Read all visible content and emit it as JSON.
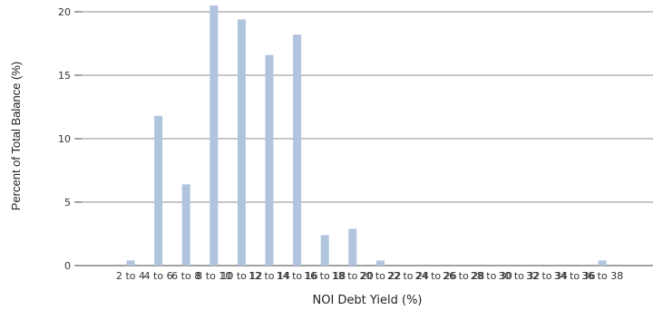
{
  "chart_data": {
    "type": "bar",
    "xlabel": "NOI Debt Yield (%)",
    "ylabel": "Percent of Total Balance (%)",
    "ylim": [
      0,
      20
    ],
    "yticks": [
      0,
      5,
      10,
      15,
      20
    ],
    "grid": true,
    "categories": [
      "2 to 4",
      "4 to 6",
      "6 to 8",
      "8 to 10",
      "10 to 12",
      "12 to 14",
      "14 to 16",
      "16 to 18",
      "18 to 20",
      "20 to 22",
      "22 to 24",
      "24 to 26",
      "26 to 28",
      "28 to 30",
      "30 to 32",
      "32 to 34",
      "34 to 36",
      "36 to 38"
    ],
    "values": [
      0.4,
      11.8,
      6.4,
      20.5,
      19.4,
      16.6,
      18.2,
      2.4,
      2.9,
      0.4,
      0,
      0,
      0,
      0,
      0,
      0,
      0,
      0.4
    ],
    "colors": {
      "bar": "#b0c4de",
      "grid": "#8c8c8c",
      "axis": "#444444"
    }
  }
}
